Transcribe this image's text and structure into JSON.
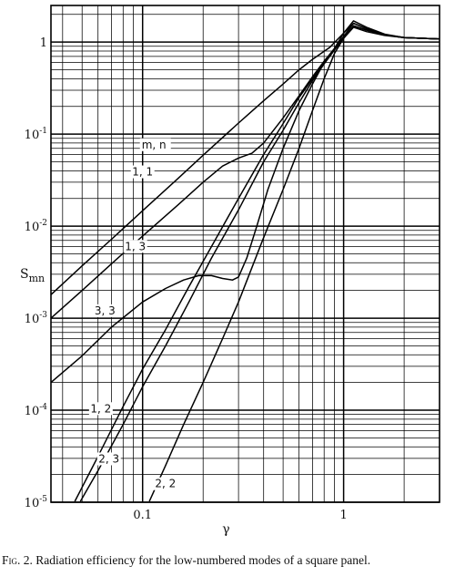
{
  "caption": {
    "figure_label": "Fig. 2.",
    "text": "Radiation efficiency for the low-numbered modes of a square panel."
  },
  "chart_data": {
    "type": "line",
    "title": "",
    "xlabel": "γ",
    "ylabel": "S_mn",
    "x_scale": "log",
    "y_scale": "log",
    "xlim": [
      0.035,
      3
    ],
    "ylim": [
      1e-05,
      2.5
    ],
    "grid": true,
    "x_tick_labels": [
      {
        "value": 0.1,
        "label": "0.1"
      },
      {
        "value": 1,
        "label": "1"
      }
    ],
    "y_tick_labels": [
      {
        "value": 1,
        "base": "1",
        "exp": ""
      },
      {
        "value": 0.1,
        "base": "10",
        "exp": "-1"
      },
      {
        "value": 0.01,
        "base": "10",
        "exp": "-2"
      },
      {
        "value": 0.001,
        "base": "10",
        "exp": "-3"
      },
      {
        "value": 0.0001,
        "base": "10",
        "exp": "-4"
      },
      {
        "value": 1e-05,
        "base": "10",
        "exp": "-5"
      }
    ],
    "legend_header": "m, n",
    "series": [
      {
        "name": "1, 1",
        "label_at": [
          0.1,
          0.0355
        ],
        "points": [
          [
            0.035,
            0.0018
          ],
          [
            0.05,
            0.0037
          ],
          [
            0.07,
            0.0072
          ],
          [
            0.1,
            0.0147
          ],
          [
            0.15,
            0.033
          ],
          [
            0.2,
            0.059
          ],
          [
            0.3,
            0.132
          ],
          [
            0.4,
            0.23
          ],
          [
            0.5,
            0.35
          ],
          [
            0.6,
            0.5
          ],
          [
            0.7,
            0.65
          ],
          [
            0.85,
            0.87
          ],
          [
            1.0,
            1.25
          ],
          [
            1.12,
            1.6
          ],
          [
            1.3,
            1.4
          ],
          [
            1.6,
            1.2
          ],
          [
            2.0,
            1.12
          ],
          [
            3.0,
            1.08
          ]
        ]
      },
      {
        "name": "1, 3",
        "label_at": [
          0.092,
          0.0055
        ],
        "points": [
          [
            0.035,
            0.001
          ],
          [
            0.05,
            0.002
          ],
          [
            0.07,
            0.0039
          ],
          [
            0.1,
            0.0078
          ],
          [
            0.15,
            0.017
          ],
          [
            0.2,
            0.03
          ],
          [
            0.25,
            0.045
          ],
          [
            0.3,
            0.055
          ],
          [
            0.35,
            0.062
          ],
          [
            0.4,
            0.08
          ],
          [
            0.5,
            0.15
          ],
          [
            0.6,
            0.26
          ],
          [
            0.7,
            0.42
          ],
          [
            0.8,
            0.62
          ],
          [
            0.9,
            0.85
          ],
          [
            1.0,
            1.25
          ],
          [
            1.12,
            1.7
          ],
          [
            1.3,
            1.45
          ],
          [
            1.6,
            1.22
          ],
          [
            2.0,
            1.12
          ],
          [
            3.0,
            1.08
          ]
        ]
      },
      {
        "name": "3, 3",
        "label_at": [
          0.065,
          0.0011
        ],
        "points": [
          [
            0.035,
            0.0002
          ],
          [
            0.05,
            0.00039
          ],
          [
            0.07,
            0.0008
          ],
          [
            0.1,
            0.0015
          ],
          [
            0.13,
            0.0021
          ],
          [
            0.16,
            0.0026
          ],
          [
            0.19,
            0.0029
          ],
          [
            0.22,
            0.0029
          ],
          [
            0.25,
            0.0027
          ],
          [
            0.28,
            0.0026
          ],
          [
            0.3,
            0.0028
          ],
          [
            0.33,
            0.0045
          ],
          [
            0.37,
            0.01
          ],
          [
            0.42,
            0.025
          ],
          [
            0.5,
            0.07
          ],
          [
            0.6,
            0.18
          ],
          [
            0.7,
            0.35
          ],
          [
            0.8,
            0.6
          ],
          [
            0.9,
            0.85
          ],
          [
            1.0,
            1.1
          ],
          [
            1.12,
            1.5
          ],
          [
            1.3,
            1.35
          ],
          [
            1.6,
            1.2
          ],
          [
            2.0,
            1.12
          ],
          [
            3.0,
            1.08
          ]
        ]
      },
      {
        "name": "1, 2",
        "label_at": [
          0.062,
          9.5e-05
        ],
        "points": [
          [
            0.046,
            1.02e-05
          ],
          [
            0.06,
            3.15e-05
          ],
          [
            0.08,
            0.00011
          ],
          [
            0.1,
            0.00028
          ],
          [
            0.13,
            0.00075
          ],
          [
            0.17,
            0.0022
          ],
          [
            0.22,
            0.006
          ],
          [
            0.3,
            0.02
          ],
          [
            0.4,
            0.06
          ],
          [
            0.5,
            0.13
          ],
          [
            0.6,
            0.25
          ],
          [
            0.7,
            0.4
          ],
          [
            0.8,
            0.6
          ],
          [
            0.9,
            0.85
          ],
          [
            1.0,
            1.15
          ],
          [
            1.12,
            1.6
          ],
          [
            1.3,
            1.4
          ],
          [
            1.6,
            1.2
          ],
          [
            2.0,
            1.12
          ],
          [
            3.0,
            1.08
          ]
        ]
      },
      {
        "name": "2, 3",
        "label_at": [
          0.068,
          2.7e-05
        ],
        "points": [
          [
            0.049,
            1.02e-05
          ],
          [
            0.06,
            2.2e-05
          ],
          [
            0.08,
            7e-05
          ],
          [
            0.1,
            0.00018
          ],
          [
            0.13,
            0.0005
          ],
          [
            0.17,
            0.0015
          ],
          [
            0.22,
            0.0045
          ],
          [
            0.3,
            0.015
          ],
          [
            0.4,
            0.05
          ],
          [
            0.5,
            0.11
          ],
          [
            0.6,
            0.22
          ],
          [
            0.7,
            0.38
          ],
          [
            0.8,
            0.58
          ],
          [
            0.9,
            0.82
          ],
          [
            1.0,
            1.1
          ],
          [
            1.12,
            1.5
          ],
          [
            1.3,
            1.35
          ],
          [
            1.6,
            1.2
          ],
          [
            2.0,
            1.12
          ],
          [
            3.0,
            1.08
          ]
        ]
      },
      {
        "name": "2, 2",
        "label_at": [
          0.13,
          1.45e-05
        ],
        "points": [
          [
            0.108,
            1.02e-05
          ],
          [
            0.13,
            2.5e-05
          ],
          [
            0.16,
            7e-05
          ],
          [
            0.2,
            0.0002
          ],
          [
            0.25,
            0.0006
          ],
          [
            0.3,
            0.0015
          ],
          [
            0.4,
            0.0075
          ],
          [
            0.5,
            0.025
          ],
          [
            0.6,
            0.07
          ],
          [
            0.7,
            0.18
          ],
          [
            0.8,
            0.4
          ],
          [
            0.9,
            0.75
          ],
          [
            1.0,
            1.1
          ],
          [
            1.12,
            1.45
          ],
          [
            1.3,
            1.3
          ],
          [
            1.6,
            1.18
          ],
          [
            2.0,
            1.12
          ],
          [
            3.0,
            1.08
          ]
        ]
      }
    ]
  }
}
